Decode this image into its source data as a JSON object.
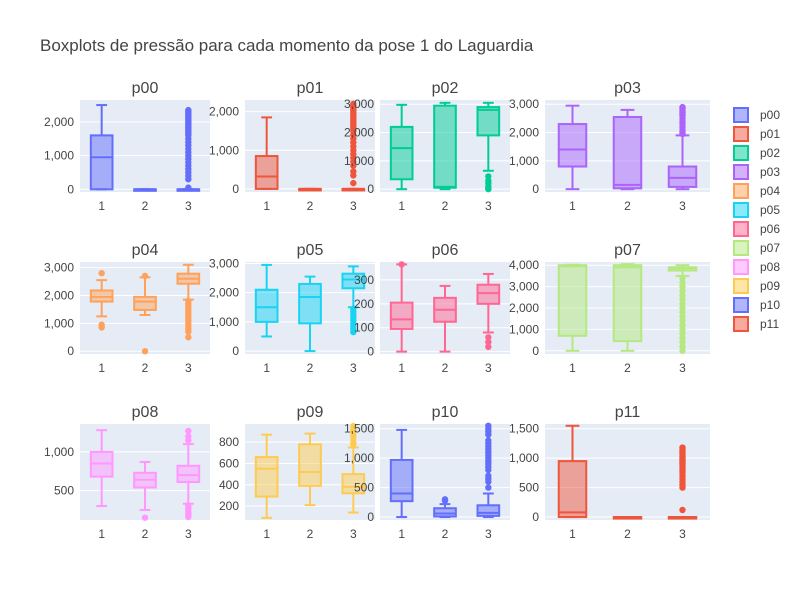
{
  "title": "Boxplots de pressão para cada momento da pose 1 do Laguardia",
  "colors": {
    "p00": "#636efa",
    "p01": "#EF553B",
    "p02": "#00cc96",
    "p03": "#ab63fa",
    "p04": "#FFA15A",
    "p05": "#19d3f3",
    "p06": "#FF6692",
    "p07": "#B6E880",
    "p08": "#FF97FF",
    "p09": "#FECB52",
    "p10": "#636efa",
    "p11": "#EF553B",
    "plot_bg": "#E5ECF6",
    "grid": "#ffffff"
  },
  "chart_data": {
    "type": "box",
    "categories": [
      "1",
      "2",
      "3"
    ],
    "legend": [
      "p00",
      "p01",
      "p02",
      "p03",
      "p04",
      "p05",
      "p06",
      "p07",
      "p08",
      "p09",
      "p10",
      "p11"
    ],
    "legend_placement": "right",
    "grid": true,
    "panels": [
      {
        "name": "p00",
        "ylim": [
          -80,
          2650
        ],
        "yticks": [
          0,
          1000,
          2000
        ],
        "boxes": [
          {
            "x": "1",
            "min": 0,
            "q1": 0,
            "median": 950,
            "q3": 1600,
            "max": 2500,
            "outliers": []
          },
          {
            "x": "2",
            "min": 0,
            "q1": 0,
            "median": 0,
            "q3": 0,
            "max": 0,
            "outliers": []
          },
          {
            "x": "3",
            "min": 0,
            "q1": 0,
            "median": 0,
            "q3": 0,
            "max": 0,
            "outliers": [
              2350,
              2300,
              2250,
              2200,
              2150,
              2100,
              2050,
              2000,
              1950,
              1900,
              1850,
              1800,
              1750,
              1700,
              1650,
              1600,
              1500,
              1400,
              1300,
              1200,
              1100,
              1000,
              900,
              800,
              700,
              600,
              500,
              400,
              300,
              50
            ]
          }
        ]
      },
      {
        "name": "p01",
        "ylim": [
          -80,
          2300
        ],
        "yticks": [
          0,
          1000,
          2000
        ],
        "boxes": [
          {
            "x": "1",
            "min": 0,
            "q1": 0,
            "median": 320,
            "q3": 850,
            "max": 1850,
            "outliers": []
          },
          {
            "x": "2",
            "min": 0,
            "q1": 0,
            "median": 0,
            "q3": 0,
            "max": 0,
            "outliers": []
          },
          {
            "x": "3",
            "min": 0,
            "q1": 0,
            "median": 0,
            "q3": 0,
            "max": 0,
            "outliers": [
              2200,
              2150,
              2100,
              2050,
              2000,
              1950,
              1900,
              1850,
              1800,
              1750,
              1700,
              1650,
              1600,
              1550,
              1500,
              1400,
              1300,
              1200,
              1100,
              1000,
              900,
              800,
              700,
              600,
              450,
              350,
              150
            ]
          }
        ]
      },
      {
        "name": "p02",
        "ylim": [
          -100,
          3150
        ],
        "yticks": [
          0,
          1000,
          2000,
          3000
        ],
        "boxes": [
          {
            "x": "1",
            "min": 0,
            "q1": 350,
            "median": 1450,
            "q3": 2200,
            "max": 2980,
            "outliers": []
          },
          {
            "x": "2",
            "min": 0,
            "q1": 50,
            "median": 80,
            "q3": 2950,
            "max": 3050,
            "outliers": []
          },
          {
            "x": "3",
            "min": 650,
            "q1": 1900,
            "median": 2800,
            "q3": 2900,
            "max": 3050,
            "outliers": [
              450,
              300,
              200,
              100,
              30,
              0
            ]
          }
        ]
      },
      {
        "name": "p03",
        "ylim": [
          -100,
          3150
        ],
        "yticks": [
          0,
          1000,
          2000,
          3000
        ],
        "boxes": [
          {
            "x": "1",
            "min": 0,
            "q1": 800,
            "median": 1400,
            "q3": 2300,
            "max": 2950,
            "outliers": []
          },
          {
            "x": "2",
            "min": 0,
            "q1": 30,
            "median": 150,
            "q3": 2550,
            "max": 2800,
            "outliers": []
          },
          {
            "x": "3",
            "min": 0,
            "q1": 80,
            "median": 400,
            "q3": 800,
            "max": 1900,
            "outliers": [
              2900,
              2850,
              2800,
              2750,
              2700,
              2650,
              2600,
              2500,
              2400,
              2300,
              2200,
              2100,
              2000,
              1950
            ]
          }
        ]
      },
      {
        "name": "p04",
        "ylim": [
          -100,
          3200
        ],
        "yticks": [
          0,
          1000,
          2000,
          3000
        ],
        "boxes": [
          {
            "x": "1",
            "min": 1250,
            "q1": 1780,
            "median": 1950,
            "q3": 2180,
            "max": 2550,
            "outliers": [
              2800,
              950,
              850
            ]
          },
          {
            "x": "2",
            "min": 1300,
            "q1": 1480,
            "median": 1780,
            "q3": 1950,
            "max": 2650,
            "outliers": [
              2700,
              0
            ]
          },
          {
            "x": "3",
            "min": 1850,
            "q1": 2420,
            "median": 2600,
            "q3": 2780,
            "max": 3100,
            "outliers": [
              1800,
              1700,
              1600,
              1500,
              1400,
              1300,
              1200,
              1100,
              1000,
              900,
              800,
              700,
              500
            ]
          }
        ]
      },
      {
        "name": "p05",
        "ylim": [
          -100,
          3050
        ],
        "yticks": [
          0,
          1000,
          2000,
          3000
        ],
        "boxes": [
          {
            "x": "1",
            "min": 500,
            "q1": 1000,
            "median": 1500,
            "q3": 2100,
            "max": 2950,
            "outliers": []
          },
          {
            "x": "2",
            "min": 0,
            "q1": 950,
            "median": 1850,
            "q3": 2300,
            "max": 2550,
            "outliers": []
          },
          {
            "x": "3",
            "min": 1500,
            "q1": 2150,
            "median": 2450,
            "q3": 2650,
            "max": 2900,
            "outliers": [
              1450,
              1350,
              1250,
              1150,
              1050,
              950,
              850,
              750,
              650
            ]
          }
        ]
      },
      {
        "name": "p06",
        "ylim": [
          -10,
          375
        ],
        "yticks": [
          0,
          100,
          200,
          300
        ],
        "boxes": [
          {
            "x": "1",
            "min": 0,
            "q1": 95,
            "median": 135,
            "q3": 205,
            "max": 365,
            "outliers": [
              365
            ]
          },
          {
            "x": "2",
            "min": 0,
            "q1": 125,
            "median": 175,
            "q3": 225,
            "max": 275,
            "outliers": []
          },
          {
            "x": "3",
            "min": 80,
            "q1": 200,
            "median": 245,
            "q3": 280,
            "max": 325,
            "outliers": [
              60,
              40,
              20
            ]
          }
        ]
      },
      {
        "name": "p07",
        "ylim": [
          -150,
          4150
        ],
        "yticks": [
          0,
          1000,
          2000,
          3000,
          4000
        ],
        "boxes": [
          {
            "x": "1",
            "min": 0,
            "q1": 700,
            "median": 3950,
            "q3": 4000,
            "max": 4020,
            "outliers": []
          },
          {
            "x": "2",
            "min": 0,
            "q1": 450,
            "median": 3900,
            "q3": 4000,
            "max": 4050,
            "outliers": []
          },
          {
            "x": "3",
            "min": 3500,
            "q1": 3750,
            "median": 3850,
            "q3": 3900,
            "max": 4000,
            "outliers": [
              3400,
              3200,
              3000,
              2800,
              2600,
              2400,
              2200,
              2000,
              1800,
              1600,
              1400,
              1200,
              1000,
              800,
              600,
              400,
              200,
              0
            ]
          }
        ]
      },
      {
        "name": "p08",
        "ylim": [
          120,
          1360
        ],
        "yticks": [
          500,
          1000
        ],
        "boxes": [
          {
            "x": "1",
            "min": 300,
            "q1": 680,
            "median": 850,
            "q3": 1000,
            "max": 1280,
            "outliers": []
          },
          {
            "x": "2",
            "min": 250,
            "q1": 540,
            "median": 640,
            "q3": 730,
            "max": 870,
            "outliers": [
              150
            ]
          },
          {
            "x": "3",
            "min": 330,
            "q1": 610,
            "median": 700,
            "q3": 820,
            "max": 1100,
            "outliers": [
              1270,
              1200,
              1150,
              300,
              260,
              220,
              190,
              160
            ]
          }
        ]
      },
      {
        "name": "p09",
        "ylim": [
          70,
          970
        ],
        "yticks": [
          200,
          400,
          600,
          800
        ],
        "boxes": [
          {
            "x": "1",
            "min": 90,
            "q1": 290,
            "median": 550,
            "q3": 660,
            "max": 870,
            "outliers": []
          },
          {
            "x": "2",
            "min": 210,
            "q1": 390,
            "median": 520,
            "q3": 780,
            "max": 880,
            "outliers": []
          },
          {
            "x": "3",
            "min": 140,
            "q1": 320,
            "median": 380,
            "q3": 500,
            "max": 750,
            "outliers": [
              950,
              920,
              900,
              870,
              840,
              800,
              780
            ]
          }
        ]
      },
      {
        "name": "p10",
        "ylim": [
          -50,
          1580
        ],
        "yticks": [
          0,
          500,
          1000,
          1500
        ],
        "boxes": [
          {
            "x": "1",
            "min": 0,
            "q1": 270,
            "median": 400,
            "q3": 970,
            "max": 1480,
            "outliers": []
          },
          {
            "x": "2",
            "min": 0,
            "q1": 10,
            "median": 60,
            "q3": 150,
            "max": 220,
            "outliers": [
              300,
              280
            ]
          },
          {
            "x": "3",
            "min": 0,
            "q1": 20,
            "median": 70,
            "q3": 200,
            "max": 400,
            "outliers": [
              1550,
              1500,
              1450,
              1400,
              1300,
              1250,
              1200,
              1150,
              1100,
              1050,
              1000,
              950,
              900,
              850,
              800,
              700,
              650,
              600,
              500
            ]
          }
        ]
      },
      {
        "name": "p11",
        "ylim": [
          -50,
          1580
        ],
        "yticks": [
          0,
          500,
          1000,
          1500
        ],
        "boxes": [
          {
            "x": "1",
            "min": 0,
            "q1": 0,
            "median": 80,
            "q3": 950,
            "max": 1550,
            "outliers": []
          },
          {
            "x": "2",
            "min": 0,
            "q1": 0,
            "median": 0,
            "q3": 0,
            "max": 0,
            "outliers": []
          },
          {
            "x": "3",
            "min": 0,
            "q1": 0,
            "median": 0,
            "q3": 0,
            "max": 0,
            "outliers": [
              1180,
              1150,
              1120,
              1100,
              1080,
              1050,
              1020,
              1000,
              980,
              960,
              940,
              920,
              900,
              880,
              860,
              820,
              780,
              750,
              700,
              650,
              600,
              550,
              500,
              120
            ]
          }
        ]
      }
    ]
  }
}
